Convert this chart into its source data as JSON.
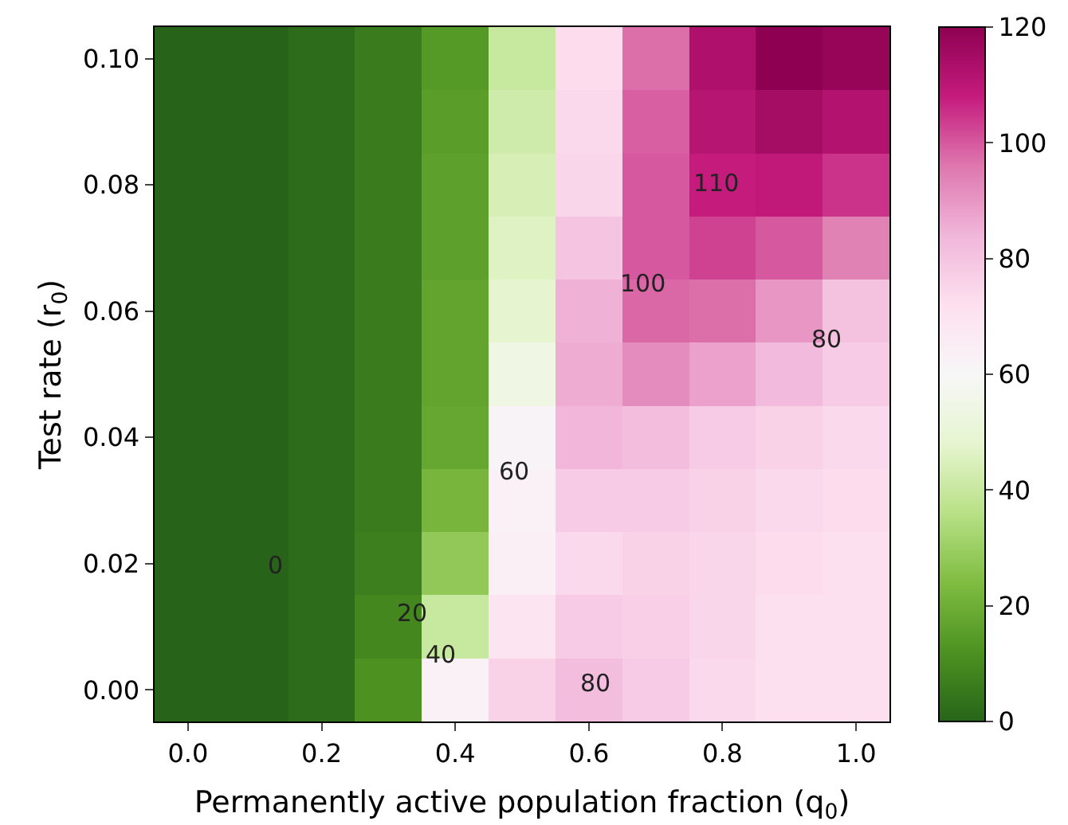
{
  "chart_data": {
    "type": "heatmap",
    "xlabel": "Permanently active population fraction (q$_{0}$)",
    "ylabel": "Test rate (r$_{0}$)",
    "categories": [
      "0.0",
      null,
      "0.2",
      null,
      "0.4",
      null,
      "0.6",
      null,
      "0.8",
      null,
      "1.0"
    ],
    "y_categories": [
      "0.10",
      null,
      "0.08",
      null,
      "0.06",
      null,
      "0.04",
      null,
      "0.02",
      null,
      "0.00"
    ],
    "cells": [
      [
        0,
        0,
        2,
        6,
        14,
        40,
        73,
        97,
        113,
        120,
        118
      ],
      [
        0,
        0,
        2,
        6,
        15,
        42,
        74,
        99,
        111,
        115,
        112
      ],
      [
        0,
        0,
        2,
        6,
        16,
        44,
        75,
        100,
        108,
        109,
        105
      ],
      [
        0,
        0,
        2,
        6,
        16,
        46,
        80,
        100,
        103,
        100,
        94
      ],
      [
        0,
        0,
        2,
        6,
        17,
        48,
        85,
        98,
        97,
        90,
        81
      ],
      [
        0,
        0,
        2,
        6,
        17,
        54,
        86,
        92,
        88,
        83,
        78
      ],
      [
        0,
        0,
        2,
        6,
        18,
        62,
        84,
        82,
        78,
        76,
        74
      ],
      [
        0,
        0,
        2,
        6,
        22,
        63,
        78,
        78,
        76,
        74,
        73
      ],
      [
        0,
        0,
        2,
        7,
        28,
        64,
        74,
        76,
        75,
        73,
        72
      ],
      [
        0,
        0,
        2,
        9,
        40,
        70,
        78,
        77,
        75,
        72,
        72
      ],
      [
        0,
        0,
        2,
        12,
        63,
        76,
        82,
        78,
        74,
        72,
        72
      ]
    ],
    "clim": [
      0,
      120
    ],
    "cticks": [
      0,
      20,
      40,
      60,
      80,
      100,
      120
    ],
    "annotations": [
      "0",
      "20",
      "40",
      "60",
      "80",
      "100",
      "110",
      "80"
    ]
  }
}
